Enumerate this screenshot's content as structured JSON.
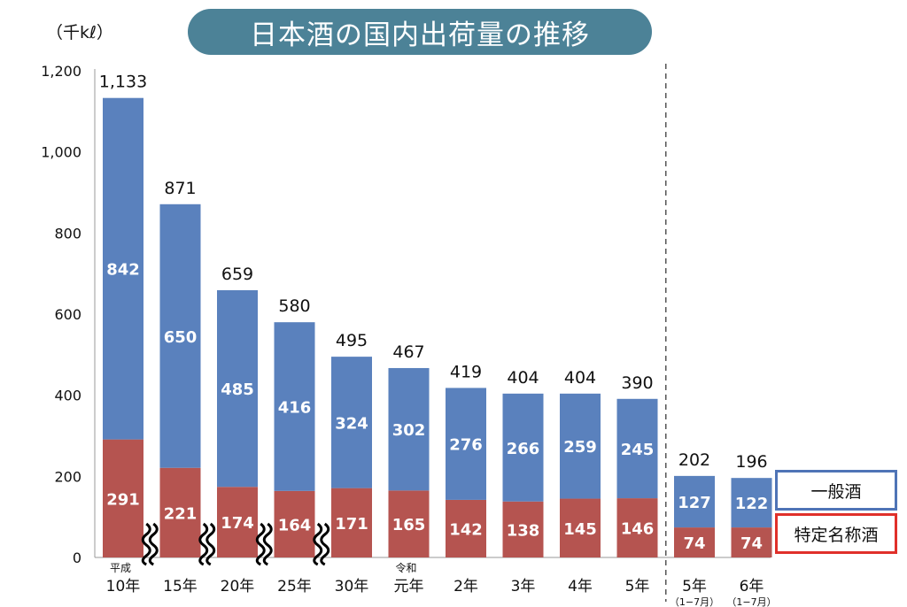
{
  "chart_data": {
    "type": "bar",
    "stacked": true,
    "title": "日本酒の国内出荷量の推移",
    "ylabel": "（千kℓ）",
    "ylim": [
      0,
      1200
    ],
    "yticks": [
      0,
      200,
      400,
      600,
      800,
      1000,
      1200
    ],
    "ytick_labels": [
      "0",
      "200",
      "400",
      "600",
      "800",
      "1,000",
      "1,200"
    ],
    "categories": [
      "10年",
      "15年",
      "20年",
      "25年",
      "30年",
      "元年",
      "2年",
      "3年",
      "4年",
      "5年",
      "5年",
      "6年"
    ],
    "era_labels": [
      "平成",
      "",
      "",
      "",
      "",
      "令和",
      "",
      "",
      "",
      "",
      "",
      ""
    ],
    "period_notes": [
      "",
      "",
      "",
      "",
      "",
      "",
      "",
      "",
      "",
      "",
      "（1−7月）",
      "（1−7月）"
    ],
    "series": [
      {
        "name": "特定名称酒",
        "color": "#b55450",
        "values": [
          291,
          221,
          174,
          164,
          171,
          165,
          142,
          138,
          145,
          146,
          74,
          74
        ]
      },
      {
        "name": "一般酒",
        "color": "#5a81bd",
        "values": [
          842,
          650,
          485,
          416,
          324,
          302,
          276,
          266,
          259,
          245,
          127,
          122
        ]
      }
    ],
    "totals": [
      "1,133",
      "871",
      "659",
      "580",
      "495",
      "467",
      "419",
      "404",
      "404",
      "390",
      "202",
      "196"
    ],
    "axis_breaks_after": [
      0,
      1,
      2,
      3
    ],
    "divider_before_index": 10,
    "legend": "right",
    "grid": false
  }
}
